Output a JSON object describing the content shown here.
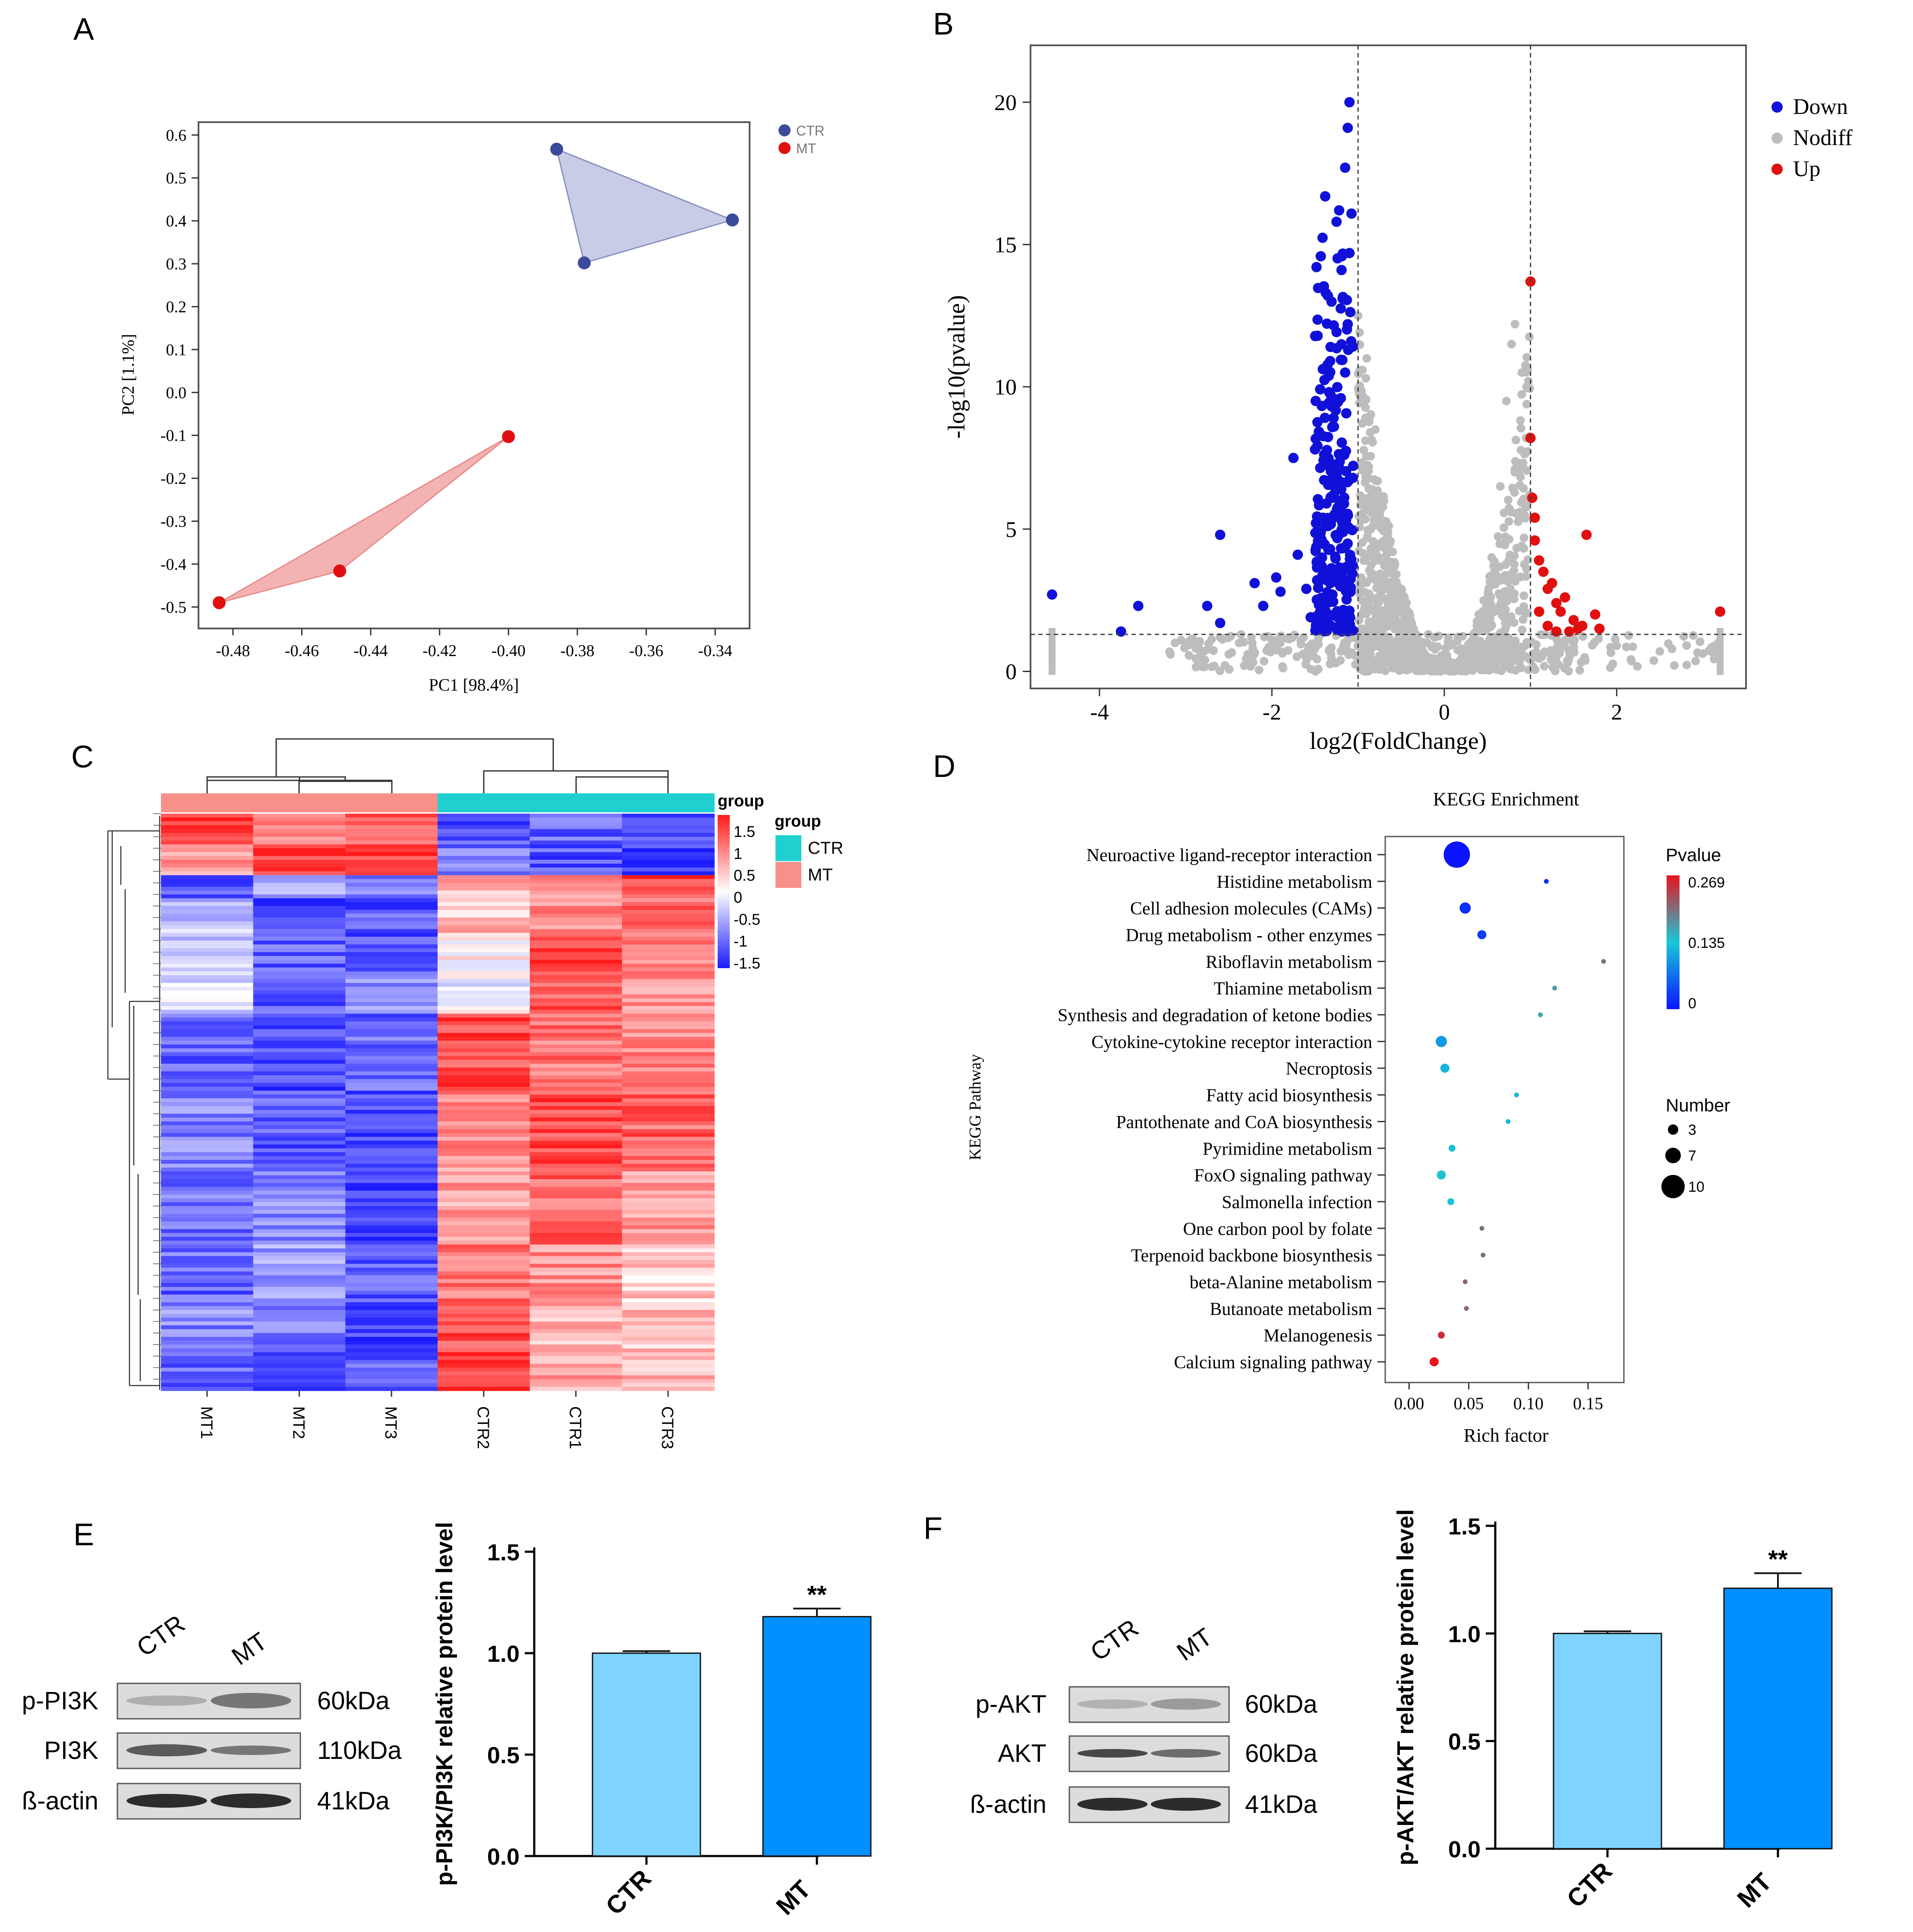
{
  "colors": {
    "ctr_point": "#3b4a99",
    "mt_point": "#e01010",
    "ctr_hull": "#c8cce6",
    "mt_hull": "#f4b3b3",
    "down": "#1010d8",
    "up": "#e01010",
    "nodiff": "#bdbdbd",
    "heat_high": "#ff1a1a",
    "heat_mid": "#ffffff",
    "heat_low": "#1a1aff",
    "group_ctr": "#20d0d0",
    "group_mt": "#f8908a",
    "bar_ctr": "#7fd4ff",
    "bar_mt": "#0090ff",
    "kegg_high": "#e8141e",
    "kegg_mid": "#18c8d8",
    "kegg_low": "#0a14ff"
  },
  "panels": {
    "A": "A",
    "B": "B",
    "C": "C",
    "D": "D",
    "E": "E",
    "F": "F"
  },
  "panel_a": {
    "legend": [
      "CTR",
      "MT"
    ]
  },
  "panel_b": {
    "legend": [
      "Down",
      "Nodiff",
      "Up"
    ]
  },
  "panel_c": {
    "legend_title_scale": "group",
    "legend_title_group": "group",
    "scale_ticks": [
      "1.5",
      "1",
      "0.5",
      "0",
      "-0.5",
      "-1",
      "-1.5"
    ],
    "group_legend": [
      "CTR",
      "MT"
    ],
    "column_labels": [
      "MT1",
      "MT2",
      "MT3",
      "CTR2",
      "CTR1",
      "CTR3"
    ]
  },
  "panel_e": {
    "lane_labels": [
      "CTR",
      "MT"
    ],
    "blots": [
      {
        "name": "p-PI3K",
        "size": "60kDa"
      },
      {
        "name": "PI3K",
        "size": "110kDa"
      },
      {
        "name": "ß-actin",
        "size": "41kDa"
      }
    ]
  },
  "panel_f": {
    "lane_labels": [
      "CTR",
      "MT"
    ],
    "blots": [
      {
        "name": "p-AKT",
        "size": "60kDa"
      },
      {
        "name": "AKT",
        "size": "60kDa"
      },
      {
        "name": "ß-actin",
        "size": "41kDa"
      }
    ]
  },
  "chart_data": [
    {
      "id": "A",
      "type": "scatter",
      "title": "",
      "xlabel": "PC1 [98.4%]",
      "ylabel": "PC2 [1.1%]",
      "xlim": [
        -0.49,
        -0.33
      ],
      "ylim": [
        -0.55,
        0.63
      ],
      "xticks": [
        -0.48,
        -0.46,
        -0.44,
        -0.42,
        -0.4,
        -0.38,
        -0.36,
        -0.34
      ],
      "xtick_labels": [
        "-0.48",
        "-0.46",
        "-0.44",
        "-0.42",
        "-0.40",
        "-0.38",
        "-0.36",
        "-0.34"
      ],
      "yticks": [
        0.6,
        0.5,
        0.4,
        0.3,
        0.2,
        0.1,
        0.0,
        -0.1,
        -0.2,
        -0.3,
        -0.4,
        -0.5
      ],
      "ytick_labels": [
        "0.6",
        "0.5",
        "0.4",
        "0.3",
        "0.2",
        "0.1",
        "0.0",
        "-0.1",
        "-0.2",
        "-0.3",
        "-0.4",
        "-0.5"
      ],
      "series": [
        {
          "name": "CTR",
          "points": [
            [
              -0.386,
              0.567
            ],
            [
              -0.335,
              0.402
            ],
            [
              -0.378,
              0.302
            ]
          ]
        },
        {
          "name": "MT",
          "points": [
            [
              -0.4,
              -0.103
            ],
            [
              -0.449,
              -0.416
            ],
            [
              -0.484,
              -0.49
            ]
          ]
        }
      ]
    },
    {
      "id": "B",
      "type": "scatter",
      "title": "",
      "xlabel": "log2(FoldChange)",
      "ylabel": "-log10(pvalue)",
      "xlim": [
        -4.8,
        3.5
      ],
      "ylim": [
        -0.6,
        22
      ],
      "xticks": [
        -4,
        -2,
        0,
        2
      ],
      "xtick_labels": [
        "-4",
        "-2",
        "0",
        "2"
      ],
      "yticks": [
        0,
        5,
        10,
        15,
        20
      ],
      "ytick_labels": [
        "0",
        "5",
        "10",
        "15",
        "20"
      ],
      "thresholds": {
        "fc": [
          -1,
          1
        ],
        "p": 1.3
      },
      "series": [
        {
          "name": "Down",
          "points": [
            [
              -4.55,
              2.7
            ],
            [
              -3.75,
              1.4
            ],
            [
              -3.55,
              2.3
            ],
            [
              -2.6,
              4.8
            ],
            [
              -2.75,
              2.3
            ],
            [
              -2.6,
              1.7
            ],
            [
              -2.2,
              3.1
            ],
            [
              -2.1,
              2.3
            ],
            [
              -1.95,
              3.3
            ],
            [
              -1.9,
              2.8
            ],
            [
              -1.75,
              7.5
            ],
            [
              -1.7,
              4.1
            ],
            [
              -1.6,
              2.9
            ],
            [
              -1.55,
              1.9
            ],
            [
              -1.5,
              7.8
            ],
            [
              -1.45,
              3.8
            ],
            [
              -1.42,
              4.6
            ],
            [
              -1.38,
              5.1
            ],
            [
              -1.35,
              13.2
            ],
            [
              -1.32,
              11.4
            ],
            [
              -1.3,
              6.1
            ],
            [
              -1.28,
              8.6
            ],
            [
              -1.25,
              15.8
            ],
            [
              -1.22,
              16.2
            ],
            [
              -1.2,
              9.6
            ],
            [
              -1.18,
              13.1
            ],
            [
              -1.15,
              17.7
            ],
            [
              -1.12,
              19.1
            ],
            [
              -1.1,
              20.0
            ],
            [
              -1.12,
              12.2
            ],
            [
              -1.15,
              10.5
            ],
            [
              -1.1,
              14.7
            ],
            [
              -1.08,
              11.6
            ],
            [
              -1.06,
              6.8
            ]
          ]
        },
        {
          "name": "Nodiff",
          "points": [
            [
              -4.55,
              0.3
            ],
            [
              -4.55,
              0.7
            ],
            [
              -4.55,
              1.1
            ],
            [
              -3.0,
              1.0
            ],
            [
              -2.5,
              0.6
            ],
            [
              -2.0,
              1.1
            ],
            [
              -1.5,
              0.8
            ],
            [
              -1.0,
              12.5
            ],
            [
              -0.9,
              11.0
            ],
            [
              -0.8,
              8.5
            ],
            [
              -0.7,
              6.0
            ],
            [
              -0.6,
              4.2
            ],
            [
              -0.5,
              2.9
            ],
            [
              -0.4,
              1.9
            ],
            [
              -0.2,
              1.0
            ],
            [
              0.0,
              0.2
            ],
            [
              0.2,
              0.8
            ],
            [
              0.4,
              2.0
            ],
            [
              0.55,
              4.0
            ],
            [
              0.65,
              6.5
            ],
            [
              0.72,
              9.5
            ],
            [
              0.78,
              11.5
            ],
            [
              0.82,
              12.2
            ],
            [
              0.9,
              10.5
            ],
            [
              0.95,
              8.2
            ],
            [
              1.5,
              1.0
            ],
            [
              2.0,
              0.9
            ],
            [
              2.5,
              0.7
            ],
            [
              3.2,
              0.3
            ],
            [
              3.2,
              0.7
            ],
            [
              3.2,
              1.1
            ]
          ]
        },
        {
          "name": "Up",
          "points": [
            [
              1.0,
              13.7
            ],
            [
              1.0,
              8.2
            ],
            [
              1.02,
              6.1
            ],
            [
              1.05,
              4.6
            ],
            [
              1.05,
              5.4
            ],
            [
              1.1,
              3.9
            ],
            [
              1.15,
              3.5
            ],
            [
              1.2,
              2.9
            ],
            [
              1.25,
              3.1
            ],
            [
              1.1,
              2.1
            ],
            [
              1.3,
              2.4
            ],
            [
              1.35,
              2.1
            ],
            [
              1.4,
              2.6
            ],
            [
              1.5,
              1.8
            ],
            [
              1.55,
              1.5
            ],
            [
              1.6,
              1.6
            ],
            [
              1.65,
              4.8
            ],
            [
              1.75,
              2.0
            ],
            [
              1.8,
              1.5
            ],
            [
              3.2,
              2.1
            ],
            [
              1.2,
              1.6
            ],
            [
              1.3,
              1.4
            ],
            [
              1.45,
              1.4
            ]
          ]
        }
      ]
    },
    {
      "id": "C",
      "type": "heatmap",
      "title": "",
      "columns": [
        "MT1",
        "MT2",
        "MT3",
        "CTR2",
        "CTR1",
        "CTR3"
      ],
      "column_groups": [
        "MT",
        "MT",
        "MT",
        "CTR",
        "CTR",
        "CTR"
      ],
      "scale_range": [
        -1.5,
        1.5
      ],
      "row_blocks": [
        {
          "rows": 8,
          "values": [
            1.2,
            0.9,
            1.0,
            -1.1,
            -1.0,
            -1.2
          ]
        },
        {
          "rows": 8,
          "values": [
            0.6,
            1.3,
            1.2,
            -0.9,
            -1.1,
            -1.3
          ]
        },
        {
          "rows": 6,
          "values": [
            -1.2,
            -0.5,
            -0.9,
            0.5,
            0.7,
            1.2
          ]
        },
        {
          "rows": 10,
          "values": [
            -0.4,
            -1.2,
            -1.1,
            0.4,
            0.8,
            1.0
          ]
        },
        {
          "rows": 10,
          "values": [
            -0.3,
            -1.0,
            -1.0,
            0.1,
            1.3,
            0.9
          ]
        },
        {
          "rows": 10,
          "values": [
            -0.2,
            -1.1,
            -0.8,
            -0.1,
            1.1,
            0.7
          ]
        },
        {
          "rows": 20,
          "values": [
            -1.0,
            -1.2,
            -1.0,
            1.2,
            0.9,
            0.8
          ]
        },
        {
          "rows": 20,
          "values": [
            -0.8,
            -1.1,
            -1.2,
            0.8,
            1.2,
            1.0
          ]
        },
        {
          "rows": 20,
          "values": [
            -0.9,
            -0.8,
            -1.3,
            0.6,
            1.0,
            0.7
          ]
        },
        {
          "rows": 16,
          "values": [
            -1.0,
            -0.6,
            -1.1,
            0.9,
            0.7,
            0.3
          ]
        },
        {
          "rows": 12,
          "values": [
            -0.8,
            -0.9,
            -1.3,
            1.1,
            0.5,
            0.4
          ]
        },
        {
          "rows": 10,
          "values": [
            -1.0,
            -1.2,
            -1.0,
            1.3,
            0.6,
            0.5
          ]
        }
      ]
    },
    {
      "id": "D",
      "type": "scatter",
      "title": "KEGG Enrichment",
      "xlabel": "Rich factor",
      "ylabel": "KEGG Pathway",
      "xlim": [
        -0.02,
        0.18
      ],
      "xticks": [
        0.0,
        0.05,
        0.1,
        0.15
      ],
      "xtick_labels": [
        "0.00",
        "0.05",
        "0.10",
        "0.15"
      ],
      "color_legend_title": "Pvalue",
      "color_ticks": [
        "0.269",
        "0.135",
        "0"
      ],
      "size_legend_title": "Number",
      "size_ticks": [
        3,
        7,
        10
      ],
      "pathways": [
        {
          "name": "Neuroactive ligand-receptor interaction",
          "rich": 0.04,
          "number": 11,
          "pvalue": 0.0
        },
        {
          "name": "Histidine metabolism",
          "rich": 0.115,
          "number": 1,
          "pvalue": 0.02
        },
        {
          "name": "Cell adhesion molecules (CAMs)",
          "rich": 0.047,
          "number": 4,
          "pvalue": 0.02
        },
        {
          "name": "Drug metabolism - other enzymes",
          "rich": 0.061,
          "number": 3,
          "pvalue": 0.03
        },
        {
          "name": "Riboflavin metabolism",
          "rich": 0.163,
          "number": 1,
          "pvalue": 0.2
        },
        {
          "name": "Thiamine metabolism",
          "rich": 0.122,
          "number": 1,
          "pvalue": 0.17
        },
        {
          "name": "Synthesis and degradation of ketone bodies",
          "rich": 0.11,
          "number": 1,
          "pvalue": 0.16
        },
        {
          "name": "Cytokine-cytokine receptor interaction",
          "rich": 0.027,
          "number": 4,
          "pvalue": 0.1
        },
        {
          "name": "Necroptosis",
          "rich": 0.03,
          "number": 3,
          "pvalue": 0.12
        },
        {
          "name": "Fatty acid biosynthesis",
          "rich": 0.09,
          "number": 1,
          "pvalue": 0.12
        },
        {
          "name": "Pantothenate and CoA biosynthesis",
          "rich": 0.083,
          "number": 1,
          "pvalue": 0.12
        },
        {
          "name": "Pyrimidine metabolism",
          "rich": 0.036,
          "number": 2,
          "pvalue": 0.13
        },
        {
          "name": "FoxO signaling pathway",
          "rich": 0.027,
          "number": 3,
          "pvalue": 0.14
        },
        {
          "name": "Salmonella infection",
          "rich": 0.035,
          "number": 2,
          "pvalue": 0.13
        },
        {
          "name": "One carbon pool by folate",
          "rich": 0.061,
          "number": 1,
          "pvalue": 0.2
        },
        {
          "name": "Terpenoid backbone biosynthesis",
          "rich": 0.062,
          "number": 1,
          "pvalue": 0.2
        },
        {
          "name": "beta-Alanine metabolism",
          "rich": 0.047,
          "number": 1,
          "pvalue": 0.21
        },
        {
          "name": "Butanoate metabolism",
          "rich": 0.048,
          "number": 1,
          "pvalue": 0.21
        },
        {
          "name": "Melanogenesis",
          "rich": 0.027,
          "number": 2,
          "pvalue": 0.25
        },
        {
          "name": "Calcium signaling pathway",
          "rich": 0.021,
          "number": 3,
          "pvalue": 0.269
        }
      ]
    },
    {
      "id": "E",
      "type": "bar",
      "title": "",
      "xlabel": "",
      "ylabel": "p-PI3K/PI3K relative protein level",
      "categories": [
        "CTR",
        "MT"
      ],
      "values": [
        1.0,
        1.18
      ],
      "errors": [
        0.01,
        0.04
      ],
      "significance": [
        "",
        "**"
      ],
      "ylim": [
        0,
        1.5
      ],
      "yticks": [
        0.0,
        0.5,
        1.0,
        1.5
      ],
      "ytick_labels": [
        "0.0",
        "0.5",
        "1.0",
        "1.5"
      ]
    },
    {
      "id": "F",
      "type": "bar",
      "title": "",
      "xlabel": "",
      "ylabel": "p-AKT/AKT relative protein level",
      "categories": [
        "CTR",
        "MT"
      ],
      "values": [
        1.0,
        1.21
      ],
      "errors": [
        0.01,
        0.07
      ],
      "significance": [
        "",
        "**"
      ],
      "ylim": [
        0,
        1.5
      ],
      "yticks": [
        0.0,
        0.5,
        1.0,
        1.5
      ],
      "ytick_labels": [
        "0.0",
        "0.5",
        "1.0",
        "1.5"
      ]
    }
  ]
}
